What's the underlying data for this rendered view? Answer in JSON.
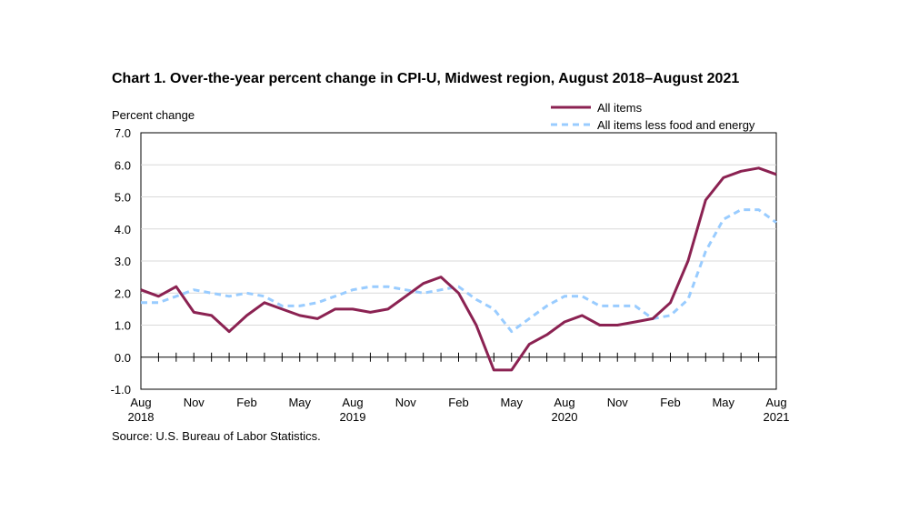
{
  "chart_data": {
    "type": "line",
    "title": "Chart 1. Over-the-year percent change in CPI-U, Midwest region, August 2018–August 2021",
    "ylabel": "Percent change",
    "xlabel": "",
    "ylim": [
      -1.0,
      7.0
    ],
    "yticks": [
      "-1.0",
      "0.0",
      "1.0",
      "2.0",
      "3.0",
      "4.0",
      "5.0",
      "6.0",
      "7.0"
    ],
    "x_tick_labels": [
      {
        "index": 0,
        "month": "Aug",
        "year": "2018"
      },
      {
        "index": 3,
        "month": "Nov",
        "year": ""
      },
      {
        "index": 6,
        "month": "Feb",
        "year": ""
      },
      {
        "index": 9,
        "month": "May",
        "year": ""
      },
      {
        "index": 12,
        "month": "Aug",
        "year": "2019"
      },
      {
        "index": 15,
        "month": "Nov",
        "year": ""
      },
      {
        "index": 18,
        "month": "Feb",
        "year": ""
      },
      {
        "index": 21,
        "month": "May",
        "year": ""
      },
      {
        "index": 24,
        "month": "Aug",
        "year": "2020"
      },
      {
        "index": 27,
        "month": "Nov",
        "year": ""
      },
      {
        "index": 30,
        "month": "Feb",
        "year": ""
      },
      {
        "index": 33,
        "month": "May",
        "year": ""
      },
      {
        "index": 36,
        "month": "Aug",
        "year": "2021"
      }
    ],
    "series": [
      {
        "name": "All items",
        "color": "#8B2252",
        "style": "solid",
        "values": [
          2.1,
          1.9,
          2.2,
          1.4,
          1.3,
          0.8,
          1.3,
          1.7,
          1.5,
          1.3,
          1.2,
          1.5,
          1.5,
          1.4,
          1.5,
          1.9,
          2.3,
          2.5,
          2.0,
          1.0,
          -0.4,
          -0.4,
          0.4,
          0.7,
          1.1,
          1.3,
          1.0,
          1.0,
          1.1,
          1.2,
          1.7,
          3.0,
          4.9,
          5.6,
          5.8,
          5.9,
          5.7
        ]
      },
      {
        "name": "All items less food and energy",
        "color": "#99CCFF",
        "style": "dashed",
        "values": [
          1.7,
          1.7,
          1.9,
          2.1,
          2.0,
          1.9,
          2.0,
          1.9,
          1.6,
          1.6,
          1.7,
          1.9,
          2.1,
          2.2,
          2.2,
          2.1,
          2.0,
          2.1,
          2.2,
          1.8,
          1.5,
          0.8,
          1.2,
          1.6,
          1.9,
          1.9,
          1.6,
          1.6,
          1.6,
          1.2,
          1.3,
          1.8,
          3.3,
          4.3,
          4.6,
          4.6,
          4.2
        ]
      }
    ],
    "legend_position": "top-right"
  },
  "source": "Source: U.S. Bureau of Labor Statistics."
}
